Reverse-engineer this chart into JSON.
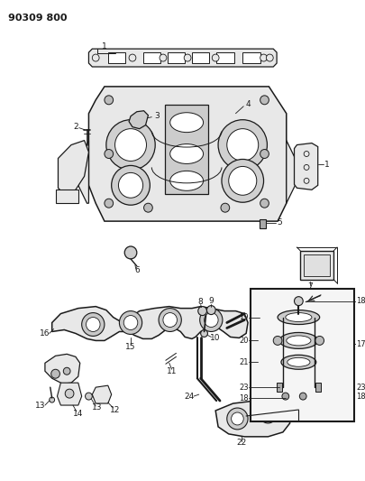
{
  "title_code": "90309 800",
  "bg_color": "#ffffff",
  "line_color": "#1a1a1a",
  "fig_width": 4.06,
  "fig_height": 5.33,
  "dpi": 100
}
